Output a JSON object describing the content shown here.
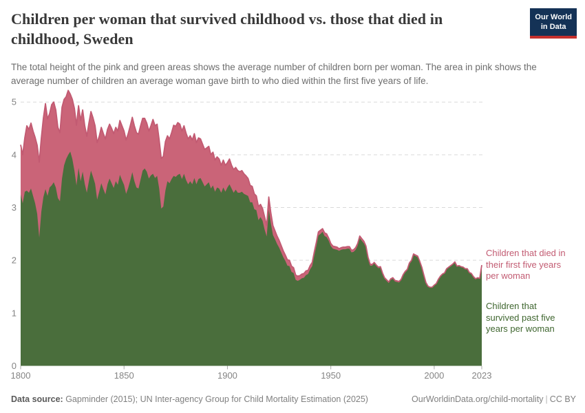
{
  "header": {
    "title": "Children per woman that survived childhood vs. those that died in childhood, Sweden",
    "subtitle": "The total height of the pink and green areas shows the average number of children born per woman. The area in pink shows the average number of children an average woman gave birth to who died within the first five years of life.",
    "logo": {
      "line1": "Our World",
      "line2": "in Data",
      "bg_color": "#143256",
      "bar_color": "#c5302d"
    }
  },
  "footer": {
    "source_label": "Data source:",
    "source_text": " Gapminder (2015); UN Inter-agency Group for Child Mortality Estimation (2025)",
    "link_text": "OurWorldinData.org/child-mortality",
    "separator": "|",
    "license": "CC BY"
  },
  "chart_data": {
    "type": "area",
    "stacked": true,
    "title": "Children per woman that survived childhood vs. those that died in childhood, Sweden",
    "xlabel": "",
    "ylabel": "",
    "ylim": [
      0,
      5
    ],
    "yticks": [
      0,
      1,
      2,
      3,
      4,
      5
    ],
    "xticks": [
      1800,
      1850,
      1900,
      1950,
      2000,
      2023
    ],
    "grid": "dashed-horizontal",
    "legend_position": "right",
    "x": [
      1800,
      1801,
      1802,
      1803,
      1804,
      1805,
      1806,
      1807,
      1808,
      1809,
      1810,
      1811,
      1812,
      1813,
      1814,
      1815,
      1816,
      1817,
      1818,
      1819,
      1820,
      1821,
      1822,
      1823,
      1824,
      1825,
      1826,
      1827,
      1828,
      1829,
      1830,
      1831,
      1832,
      1833,
      1834,
      1835,
      1836,
      1837,
      1838,
      1839,
      1840,
      1841,
      1842,
      1843,
      1844,
      1845,
      1846,
      1847,
      1848,
      1849,
      1850,
      1851,
      1852,
      1853,
      1854,
      1855,
      1856,
      1857,
      1858,
      1859,
      1860,
      1861,
      1862,
      1863,
      1864,
      1865,
      1866,
      1867,
      1868,
      1869,
      1870,
      1871,
      1872,
      1873,
      1874,
      1875,
      1876,
      1877,
      1878,
      1879,
      1880,
      1881,
      1882,
      1883,
      1884,
      1885,
      1886,
      1887,
      1888,
      1889,
      1890,
      1891,
      1892,
      1893,
      1894,
      1895,
      1896,
      1897,
      1898,
      1899,
      1900,
      1901,
      1902,
      1903,
      1904,
      1905,
      1906,
      1907,
      1908,
      1909,
      1910,
      1911,
      1912,
      1913,
      1914,
      1915,
      1916,
      1917,
      1918,
      1919,
      1920,
      1921,
      1922,
      1923,
      1924,
      1925,
      1926,
      1927,
      1928,
      1929,
      1930,
      1931,
      1932,
      1933,
      1934,
      1935,
      1936,
      1937,
      1938,
      1939,
      1940,
      1941,
      1942,
      1943,
      1944,
      1945,
      1946,
      1947,
      1948,
      1949,
      1950,
      1951,
      1952,
      1953,
      1954,
      1955,
      1956,
      1957,
      1958,
      1959,
      1960,
      1961,
      1962,
      1963,
      1964,
      1965,
      1966,
      1967,
      1968,
      1969,
      1970,
      1971,
      1972,
      1973,
      1974,
      1975,
      1976,
      1977,
      1978,
      1979,
      1980,
      1981,
      1982,
      1983,
      1984,
      1985,
      1986,
      1987,
      1988,
      1989,
      1990,
      1991,
      1992,
      1993,
      1994,
      1995,
      1996,
      1997,
      1998,
      1999,
      2000,
      2001,
      2002,
      2003,
      2004,
      2005,
      2006,
      2007,
      2008,
      2009,
      2010,
      2011,
      2012,
      2013,
      2014,
      2015,
      2016,
      2017,
      2018,
      2019,
      2020,
      2021,
      2022,
      2023
    ],
    "series": [
      {
        "name": "Children that survived past five years per woman",
        "color": "#4a6e3c",
        "label_color": "#3f662f",
        "values": [
          3.25,
          3.08,
          3.3,
          3.32,
          3.28,
          3.36,
          3.22,
          3.08,
          2.88,
          2.43,
          2.92,
          3.2,
          3.35,
          3.22,
          3.38,
          3.42,
          3.48,
          3.38,
          3.18,
          3.12,
          3.55,
          3.8,
          3.92,
          4.0,
          4.06,
          3.92,
          3.7,
          3.42,
          3.75,
          3.5,
          3.68,
          3.45,
          3.28,
          3.5,
          3.7,
          3.58,
          3.45,
          3.15,
          3.3,
          3.46,
          3.35,
          3.25,
          3.44,
          3.55,
          3.46,
          3.37,
          3.5,
          3.43,
          3.62,
          3.52,
          3.43,
          3.26,
          3.37,
          3.51,
          3.67,
          3.5,
          3.38,
          3.36,
          3.53,
          3.7,
          3.74,
          3.68,
          3.55,
          3.61,
          3.64,
          3.56,
          3.6,
          3.36,
          2.98,
          3.02,
          3.32,
          3.5,
          3.46,
          3.54,
          3.6,
          3.58,
          3.62,
          3.64,
          3.54,
          3.64,
          3.52,
          3.44,
          3.5,
          3.44,
          3.56,
          3.44,
          3.54,
          3.56,
          3.48,
          3.4,
          3.44,
          3.48,
          3.36,
          3.42,
          3.3,
          3.38,
          3.36,
          3.28,
          3.38,
          3.3,
          3.38,
          3.44,
          3.36,
          3.28,
          3.34,
          3.28,
          3.28,
          3.3,
          3.26,
          3.24,
          3.22,
          3.1,
          3.1,
          2.97,
          2.95,
          2.76,
          2.82,
          2.75,
          2.58,
          2.45,
          2.96,
          2.7,
          2.48,
          2.4,
          2.31,
          2.24,
          2.15,
          2.06,
          1.99,
          1.9,
          1.89,
          1.78,
          1.76,
          1.63,
          1.61,
          1.63,
          1.66,
          1.67,
          1.72,
          1.74,
          1.83,
          1.89,
          2.09,
          2.27,
          2.47,
          2.5,
          2.54,
          2.46,
          2.44,
          2.37,
          2.27,
          2.22,
          2.21,
          2.2,
          2.18,
          2.2,
          2.21,
          2.21,
          2.22,
          2.22,
          2.15,
          2.16,
          2.2,
          2.28,
          2.42,
          2.37,
          2.32,
          2.24,
          2.03,
          1.9,
          1.9,
          1.94,
          1.89,
          1.85,
          1.86,
          1.74,
          1.65,
          1.61,
          1.57,
          1.63,
          1.65,
          1.6,
          1.59,
          1.58,
          1.62,
          1.71,
          1.77,
          1.81,
          1.93,
          1.98,
          2.1,
          2.08,
          2.06,
          1.96,
          1.85,
          1.71,
          1.57,
          1.5,
          1.48,
          1.48,
          1.52,
          1.55,
          1.63,
          1.69,
          1.73,
          1.75,
          1.83,
          1.86,
          1.89,
          1.92,
          1.96,
          1.88,
          1.89,
          1.87,
          1.86,
          1.83,
          1.83,
          1.76,
          1.74,
          1.68,
          1.64,
          1.66,
          1.65,
          1.9
        ]
      },
      {
        "name": "Children that died in their first five years per woman",
        "color": "#ca6478",
        "label_color": "#c25b72",
        "edge_color": "#c25a72",
        "values": [
          0.94,
          0.92,
          1.02,
          1.23,
          1.2,
          1.24,
          1.23,
          1.25,
          1.3,
          1.43,
          1.4,
          1.5,
          1.62,
          1.46,
          1.4,
          1.53,
          1.52,
          1.47,
          1.34,
          1.3,
          1.35,
          1.25,
          1.18,
          1.22,
          1.09,
          1.13,
          1.18,
          1.14,
          1.18,
          1.15,
          1.17,
          1.1,
          1.07,
          1.1,
          1.12,
          1.12,
          1.1,
          1.08,
          1.05,
          1.06,
          1.05,
          1.05,
          1.04,
          1.03,
          1.04,
          1.03,
          1.02,
          1.02,
          1.03,
          1.03,
          1.02,
          1.02,
          1.03,
          1.04,
          1.04,
          1.05,
          1.04,
          1.03,
          1.02,
          0.99,
          0.95,
          0.92,
          0.9,
          0.94,
          1.03,
          0.99,
          0.98,
          0.92,
          0.95,
          0.95,
          0.93,
          0.86,
          0.84,
          0.88,
          0.96,
          0.96,
          0.99,
          0.94,
          0.91,
          0.91,
          0.89,
          0.86,
          0.86,
          0.84,
          0.84,
          0.79,
          0.78,
          0.74,
          0.72,
          0.7,
          0.69,
          0.68,
          0.64,
          0.63,
          0.6,
          0.58,
          0.56,
          0.52,
          0.52,
          0.5,
          0.47,
          0.48,
          0.44,
          0.44,
          0.42,
          0.42,
          0.4,
          0.4,
          0.38,
          0.36,
          0.33,
          0.32,
          0.3,
          0.29,
          0.27,
          0.26,
          0.24,
          0.23,
          0.24,
          0.21,
          0.24,
          0.2,
          0.18,
          0.16,
          0.15,
          0.14,
          0.13,
          0.12,
          0.11,
          0.11,
          0.11,
          0.11,
          0.1,
          0.09,
          0.09,
          0.08,
          0.08,
          0.08,
          0.08,
          0.07,
          0.07,
          0.07,
          0.07,
          0.07,
          0.07,
          0.07,
          0.06,
          0.06,
          0.06,
          0.05,
          0.05,
          0.05,
          0.05,
          0.05,
          0.04,
          0.04,
          0.04,
          0.04,
          0.04,
          0.04,
          0.04,
          0.04,
          0.04,
          0.04,
          0.04,
          0.04,
          0.04,
          0.03,
          0.03,
          0.03,
          0.02,
          0.02,
          0.02,
          0.02,
          0.02,
          0.02,
          0.02,
          0.02,
          0.02,
          0.02,
          0.02,
          0.02,
          0.02,
          0.02,
          0.02,
          0.02,
          0.02,
          0.02,
          0.02,
          0.02,
          0.02,
          0.02,
          0.02,
          0.02,
          0.02,
          0.01,
          0.01,
          0.01,
          0.01,
          0.01,
          0.01,
          0.01,
          0.01,
          0.01,
          0.01,
          0.01,
          0.01,
          0.01,
          0.01,
          0.01,
          0.01,
          0.01,
          0.01,
          0.01,
          0.01,
          0.01,
          0.01,
          0.01,
          0.01,
          0.01,
          0.01,
          0.01,
          0.01,
          0.01
        ]
      }
    ],
    "axis_colors": {
      "grid": "#d9d9d9",
      "tick": "#a8a8a8",
      "tick_label": "#848484"
    }
  }
}
